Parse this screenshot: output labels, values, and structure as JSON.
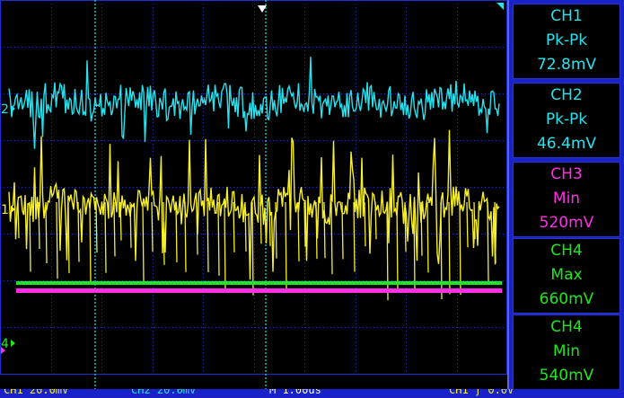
{
  "colors": {
    "ch1": "#f6ef2a",
    "ch2": "#27e2ee",
    "ch3": "#ff2fe6",
    "ch4": "#1de81d",
    "grid": "#1e2fd6",
    "panel": "#1822c8",
    "marker": "#ffffff"
  },
  "markers": {
    "ch1": "1",
    "ch2": "2",
    "ch4": "4"
  },
  "measurements": [
    {
      "channel": "CH1",
      "type": "Pk-Pk",
      "value": "72.8mV",
      "color": "#27e2ee"
    },
    {
      "channel": "CH2",
      "type": "Pk-Pk",
      "value": "46.4mV",
      "color": "#27e2ee"
    },
    {
      "channel": "CH3",
      "type": "Min",
      "value": "520mV",
      "color": "#ff2fe6"
    },
    {
      "channel": "CH4",
      "type": "Max",
      "value": "660mV",
      "color": "#1de81d"
    },
    {
      "channel": "CH4",
      "type": "Min",
      "value": "540mV",
      "color": "#1de81d"
    }
  ],
  "status_bar": [
    {
      "text": "CH1  20.0mV",
      "color": "#f6ef2a"
    },
    {
      "text": "CH2  20.0mV",
      "color": "#27e2ee"
    },
    {
      "text": "M 1.00us",
      "color": "#ffffff"
    },
    {
      "text": "CH1  ƒ  0.0V",
      "color": "#f6ef2a"
    }
  ]
}
